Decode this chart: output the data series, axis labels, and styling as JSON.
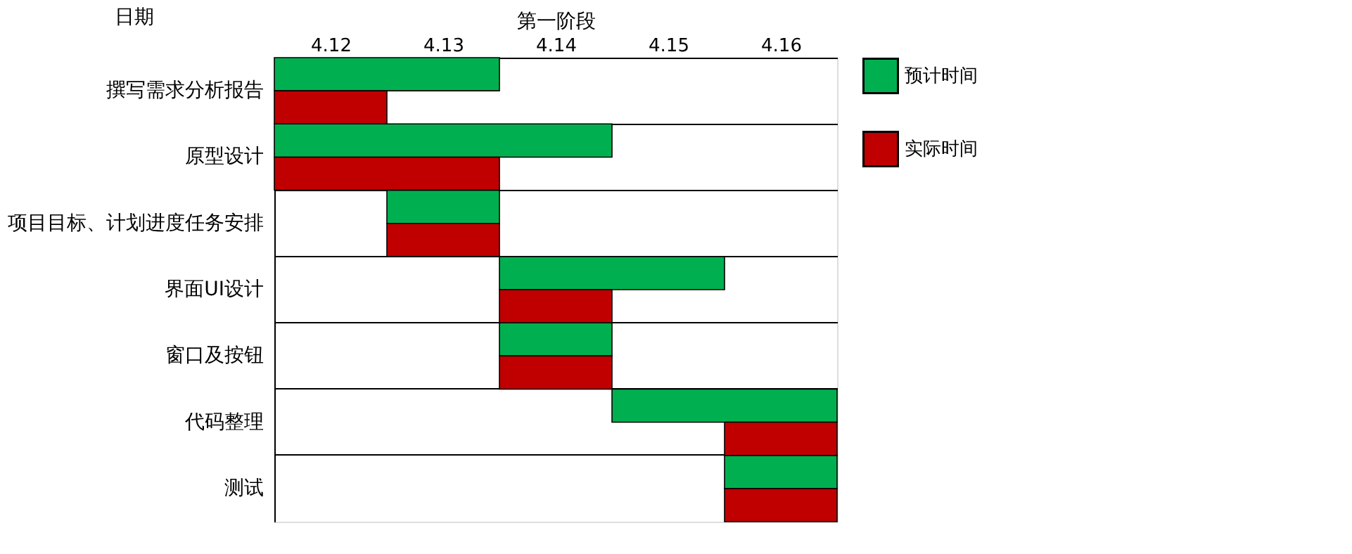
{
  "chart_data": {
    "type": "bar",
    "orientation": "horizontal",
    "xlabel": "第一阶段",
    "ylabel": "日期",
    "categories": [
      "撰写需求分析报告",
      "原型设计",
      "项目目标、计划进度任务安排",
      "界面UI设计",
      "窗口及按钮",
      "代码整理",
      "测试"
    ],
    "series": [
      {
        "name": "预计时间",
        "color": "#00b050",
        "base": [
          4.115,
          4.115,
          4.125,
          4.135,
          4.135,
          4.145,
          4.155
        ],
        "values": [
          0.02,
          0.03,
          0.01,
          0.02,
          0.01,
          0.02,
          0.01
        ]
      },
      {
        "name": "实际时间",
        "color": "#c00000",
        "base": [
          4.115,
          4.115,
          4.125,
          4.135,
          4.135,
          4.155,
          4.155
        ],
        "values": [
          0.01,
          0.02,
          0.01,
          0.01,
          0.01,
          0.01,
          0.01
        ]
      }
    ],
    "xlim": [
      4.115,
      4.165
    ],
    "xticks": [
      4.12,
      4.13,
      4.14,
      4.15,
      4.16
    ],
    "grid": "y",
    "legend": "right"
  }
}
